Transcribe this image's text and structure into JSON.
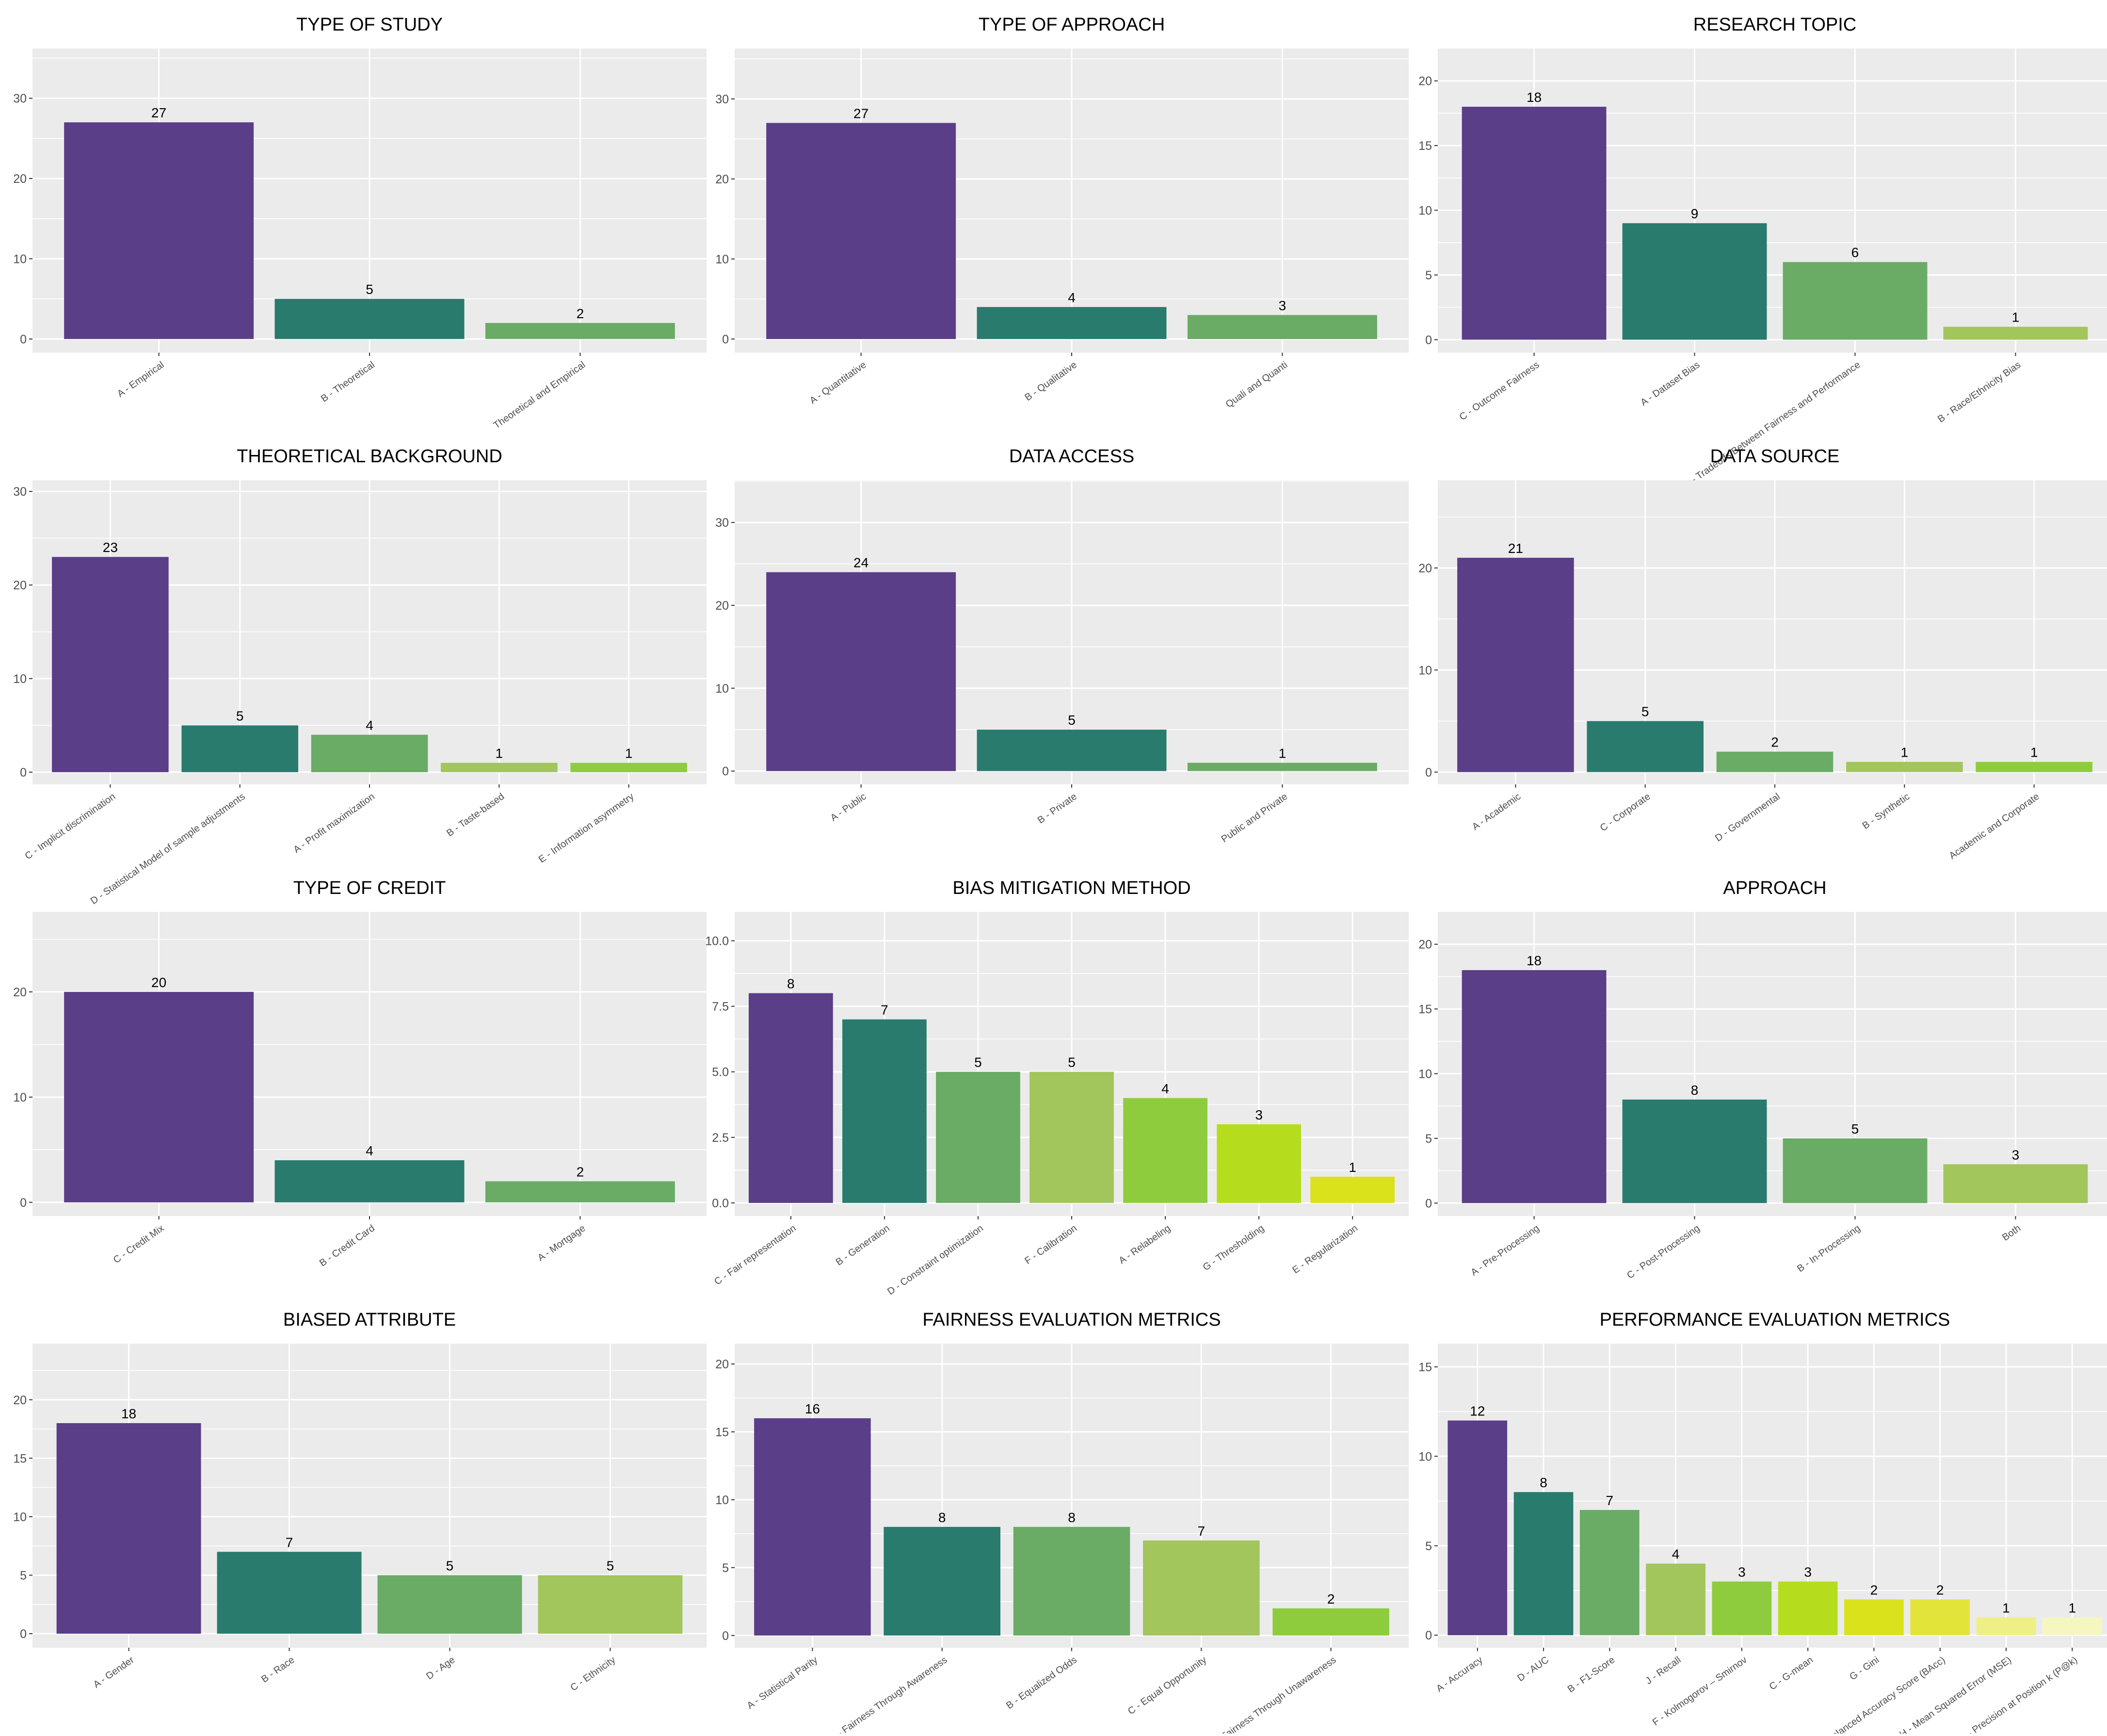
{
  "colors": {
    "panel_background": "#ebebeb",
    "gridline": "#ffffff",
    "text": "#000000",
    "axis_text": "#4d4d4d",
    "palette": [
      "#5a3e88",
      "#297b6d",
      "#6aab65",
      "#a2c55c",
      "#8ecc3e",
      "#b5dd1e",
      "#d9e21b",
      "#e3e43a",
      "#eeef85",
      "#f6f7c0"
    ]
  },
  "chart_data": [
    {
      "type": "bar",
      "title": "TYPE OF STUDY",
      "categories": [
        "A - Empirical",
        "B - Theoretical",
        "Theoretical and Empirical"
      ],
      "values": [
        27,
        5,
        2
      ],
      "ylim": [
        -1.7,
        36.2
      ],
      "yticks": [
        0,
        10,
        20,
        30
      ],
      "ytick_labels": [
        "0",
        "10",
        "20",
        "30"
      ],
      "grid": true
    },
    {
      "type": "bar",
      "title": "TYPE OF APPROACH",
      "categories": [
        "A - Quantitative",
        "B - Qualitative",
        "Quali and Quanti"
      ],
      "values": [
        27,
        4,
        3
      ],
      "ylim": [
        -1.7,
        36.3
      ],
      "yticks": [
        0,
        10,
        20,
        30
      ],
      "ytick_labels": [
        "0",
        "10",
        "20",
        "30"
      ],
      "grid": true
    },
    {
      "type": "bar",
      "title": "RESEARCH TOPIC",
      "categories": [
        "C - Outcome Fairness",
        "A - Dataset Bias",
        "D - Tradeoffs Between Fairness and Performance",
        "B - Race/Ethnicity Bias"
      ],
      "values": [
        18,
        9,
        6,
        1
      ],
      "ylim": [
        -1.0,
        22.5
      ],
      "yticks": [
        0,
        5,
        10,
        15,
        20
      ],
      "ytick_labels": [
        "0",
        "5",
        "10",
        "15",
        "20"
      ],
      "grid": true
    },
    {
      "type": "bar",
      "title": "THEORETICAL BACKGROUND",
      "categories": [
        "C - Implicit discrimination",
        "D - Statistical Model of sample adjustments",
        "A - Profit maximization",
        "B - Taste-based",
        "E - Information asymmetry"
      ],
      "values": [
        23,
        5,
        4,
        1,
        1
      ],
      "ylim": [
        -1.3,
        31.2
      ],
      "yticks": [
        0,
        10,
        20,
        30
      ],
      "ytick_labels": [
        "0",
        "10",
        "20",
        "30"
      ],
      "grid": true
    },
    {
      "type": "bar",
      "title": "DATA ACCESS",
      "categories": [
        "A - Public",
        "B - Private",
        "Public and Private"
      ],
      "values": [
        24,
        5,
        1
      ],
      "ylim": [
        -1.6,
        35.1
      ],
      "yticks": [
        0,
        10,
        20,
        30
      ],
      "ytick_labels": [
        "0",
        "10",
        "20",
        "30"
      ],
      "grid": true
    },
    {
      "type": "bar",
      "title": "DATA SOURCE",
      "categories": [
        "A - Academic",
        "C - Corporate",
        "D - Governmental",
        "B - Synthetic",
        "Academic and Corporate"
      ],
      "values": [
        21,
        5,
        2,
        1,
        1
      ],
      "ylim": [
        -1.2,
        28.6
      ],
      "yticks": [
        0,
        10,
        20
      ],
      "ytick_labels": [
        "0",
        "10",
        "20"
      ],
      "grid": true
    },
    {
      "type": "bar",
      "title": "TYPE OF CREDIT",
      "categories": [
        "C - Credit Mix",
        "B - Credit Card",
        "A - Mortgage"
      ],
      "values": [
        20,
        4,
        2
      ],
      "ylim": [
        -1.3,
        27.6
      ],
      "yticks": [
        0,
        10,
        20
      ],
      "ytick_labels": [
        "0",
        "10",
        "20"
      ],
      "grid": true
    },
    {
      "type": "bar",
      "title": "BIAS MITIGATION METHOD",
      "categories": [
        "C - Fair representation",
        "B - Generation",
        "D - Constraint optimization",
        "F - Calibration",
        "A - Relabeling",
        "G - Thresholding",
        "E - Regularization"
      ],
      "values": [
        8,
        7,
        5,
        5,
        4,
        3,
        1
      ],
      "ylim": [
        -0.5,
        11.1
      ],
      "yticks": [
        0,
        2.5,
        5,
        7.5,
        10
      ],
      "ytick_labels": [
        "0.0",
        "2.5",
        "5.0",
        "7.5",
        "10.0"
      ],
      "grid": true
    },
    {
      "type": "bar",
      "title": "APPROACH",
      "categories": [
        "A - Pre-Processing",
        "C - Post-Processing",
        "B - In-Processing",
        "Both"
      ],
      "values": [
        18,
        8,
        5,
        3
      ],
      "ylim": [
        -1.0,
        22.5
      ],
      "yticks": [
        0,
        5,
        10,
        15,
        20
      ],
      "ytick_labels": [
        "0",
        "5",
        "10",
        "15",
        "20"
      ],
      "grid": true
    },
    {
      "type": "bar",
      "title": "BIASED ATTRIBUTE",
      "categories": [
        "A - Gender",
        "B - Race",
        "D - Age",
        "C - Ethnicity"
      ],
      "values": [
        18,
        7,
        5,
        5
      ],
      "ylim": [
        -1.2,
        24.8
      ],
      "yticks": [
        0,
        5,
        10,
        15,
        20
      ],
      "ytick_labels": [
        "0",
        "5",
        "10",
        "15",
        "20"
      ],
      "grid": true
    },
    {
      "type": "bar",
      "title": "FAIRNESS EVALUATION METRICS",
      "categories": [
        "A - Statistical Parity",
        "G - Fairness Through Awareness",
        "B - Equalized Odds",
        "C - Equal Opportunity",
        "F - Fairness Through Unawareness"
      ],
      "values": [
        16,
        8,
        8,
        7,
        2
      ],
      "ylim": [
        -0.9,
        21.5
      ],
      "yticks": [
        0,
        5,
        10,
        15,
        20
      ],
      "ytick_labels": [
        "0",
        "5",
        "10",
        "15",
        "20"
      ],
      "grid": true
    },
    {
      "type": "bar",
      "title": "PERFORMANCE EVALUATION METRICS",
      "categories": [
        "A - Accuracy",
        "D - AUC",
        "B - F1-Score",
        "J - Recall",
        "F - Kolmogorov – Smirnov",
        "C - G-mean",
        "G - Gini",
        "K - Balanced Accuracy Score (BAcc)",
        "H - Mean Squared Error (MSE)",
        "I - Precision at Position k (P@k)"
      ],
      "values": [
        12,
        8,
        7,
        4,
        3,
        3,
        2,
        2,
        1,
        1
      ],
      "ylim": [
        -0.7,
        16.3
      ],
      "yticks": [
        0,
        5,
        10,
        15
      ],
      "ytick_labels": [
        "0",
        "5",
        "10",
        "15"
      ],
      "grid": true
    }
  ]
}
